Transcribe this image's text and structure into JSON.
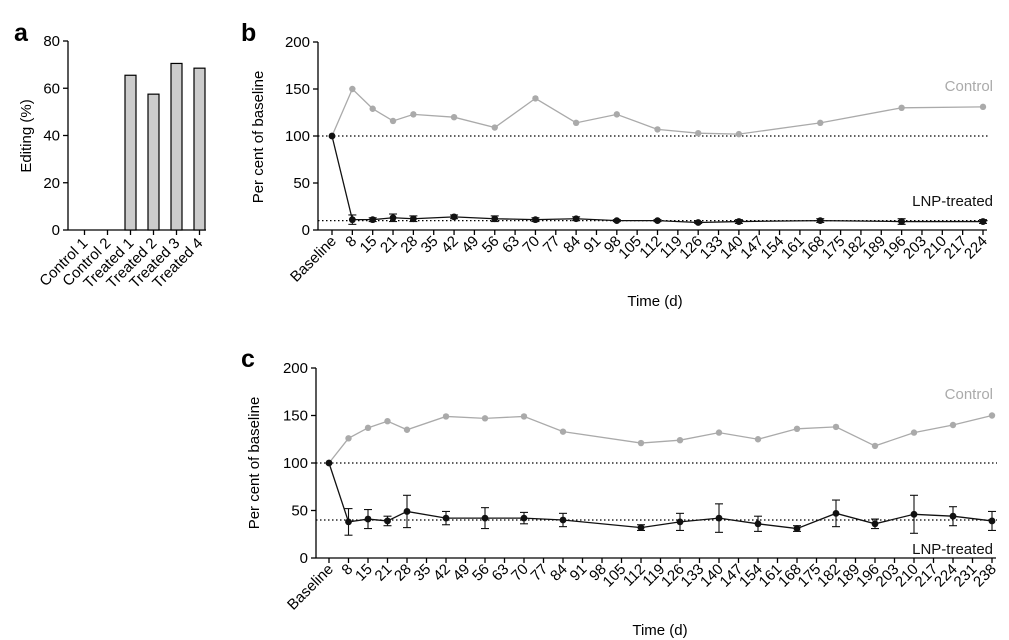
{
  "chart_data": [
    {
      "panel": "a",
      "type": "bar",
      "ylabel": "Editing (%)",
      "ylim": [
        0,
        80
      ],
      "yticks": [
        0,
        20,
        40,
        60,
        80
      ],
      "categories": [
        "Control 1",
        "Control 2",
        "Treated 1",
        "Treated 2",
        "Treated 3",
        "Treated 4"
      ],
      "values": [
        0,
        0,
        65.5,
        57.5,
        70.5,
        68.5
      ],
      "bar_color": "#cccccc"
    },
    {
      "panel": "b",
      "type": "line",
      "xlabel": "Time (d)",
      "ylabel": "Per cent of baseline",
      "ylim": [
        0,
        200
      ],
      "yticks": [
        0,
        50,
        100,
        150,
        200
      ],
      "categories": [
        "Baseline",
        "8",
        "15",
        "21",
        "28",
        "35",
        "42",
        "49",
        "56",
        "63",
        "70",
        "77",
        "84",
        "91",
        "98",
        "105",
        "112",
        "119",
        "126",
        "133",
        "140",
        "147",
        "154",
        "161",
        "168",
        "175",
        "182",
        "189",
        "196",
        "203",
        "210",
        "217",
        "224"
      ],
      "reference_lines": [
        100,
        10
      ],
      "series": [
        {
          "name": "Control",
          "color": "#aaaaaa",
          "x": [
            "Baseline",
            "8",
            "15",
            "21",
            "28",
            "42",
            "56",
            "70",
            "84",
            "98",
            "112",
            "126",
            "140",
            "168",
            "196",
            "224"
          ],
          "values": [
            100,
            150,
            129,
            116,
            123,
            120,
            109,
            140,
            114,
            123,
            107,
            103,
            102,
            114,
            130,
            131
          ]
        },
        {
          "name": "LNP-treated",
          "color": "#111111",
          "x": [
            "Baseline",
            "8",
            "15",
            "21",
            "28",
            "42",
            "56",
            "70",
            "84",
            "98",
            "112",
            "126",
            "140",
            "168",
            "196",
            "224"
          ],
          "values": [
            100,
            11,
            11,
            13,
            12,
            14,
            12,
            11,
            12,
            10,
            10,
            8,
            9,
            10,
            9,
            9
          ],
          "error": [
            0,
            5,
            2,
            4,
            3,
            2,
            3,
            2,
            2,
            1,
            1,
            1,
            2,
            2,
            3,
            2
          ]
        }
      ]
    },
    {
      "panel": "c",
      "type": "line",
      "xlabel": "Time (d)",
      "ylabel": "Per cent of baseline",
      "ylim": [
        0,
        200
      ],
      "yticks": [
        0,
        50,
        100,
        150,
        200
      ],
      "categories": [
        "Baseline",
        "8",
        "15",
        "21",
        "28",
        "35",
        "42",
        "49",
        "56",
        "63",
        "70",
        "77",
        "84",
        "91",
        "98",
        "105",
        "112",
        "119",
        "126",
        "133",
        "140",
        "147",
        "154",
        "161",
        "168",
        "175",
        "182",
        "189",
        "196",
        "203",
        "210",
        "217",
        "224",
        "231",
        "238"
      ],
      "reference_lines": [
        100,
        40
      ],
      "series": [
        {
          "name": "Control",
          "color": "#aaaaaa",
          "x": [
            "Baseline",
            "8",
            "15",
            "21",
            "28",
            "42",
            "56",
            "70",
            "84",
            "112",
            "126",
            "140",
            "154",
            "168",
            "182",
            "196",
            "210",
            "224",
            "238"
          ],
          "values": [
            100,
            126,
            137,
            144,
            135,
            149,
            147,
            149,
            133,
            121,
            124,
            132,
            125,
            136,
            138,
            118,
            132,
            140,
            150
          ]
        },
        {
          "name": "LNP-treated",
          "color": "#111111",
          "x": [
            "Baseline",
            "8",
            "15",
            "21",
            "28",
            "42",
            "56",
            "70",
            "84",
            "112",
            "126",
            "140",
            "154",
            "168",
            "182",
            "196",
            "210",
            "224",
            "238"
          ],
          "values": [
            100,
            38,
            41,
            39,
            49,
            42,
            42,
            42,
            40,
            32,
            38,
            42,
            36,
            31,
            47,
            36,
            46,
            44,
            39
          ],
          "error": [
            0,
            14,
            10,
            5,
            17,
            7,
            11,
            6,
            7,
            3,
            9,
            15,
            8,
            3,
            14,
            5,
            20,
            10,
            10
          ]
        }
      ]
    }
  ]
}
